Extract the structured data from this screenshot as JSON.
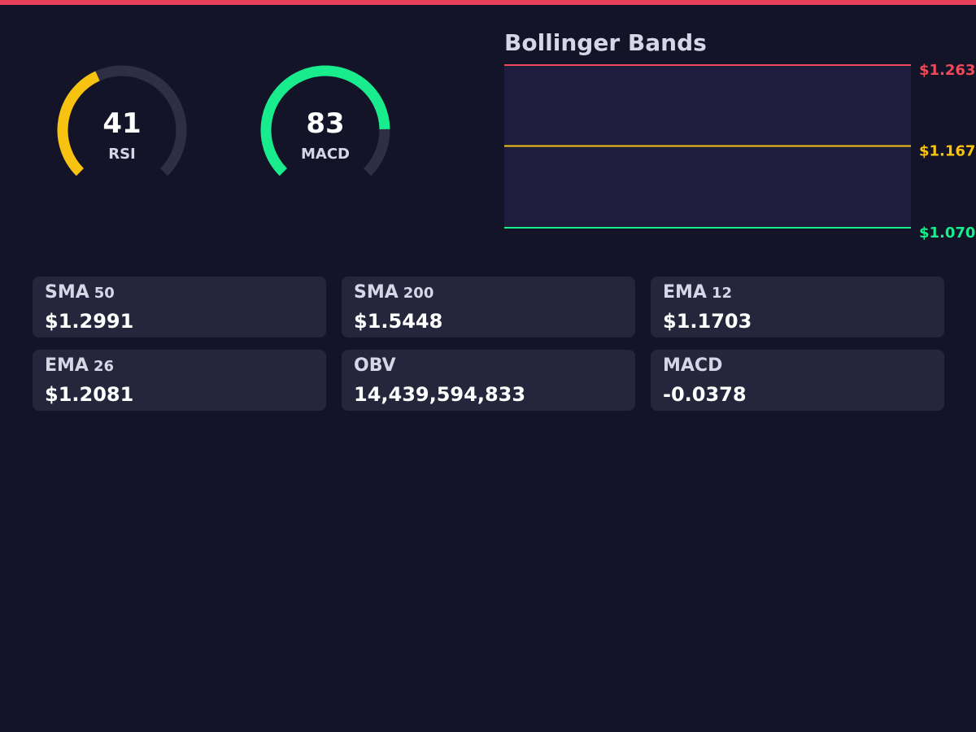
{
  "gauges": [
    {
      "label": "RSI",
      "value": 41,
      "range": [
        0,
        100
      ],
      "color": "#f7c210"
    },
    {
      "label": "MACD",
      "value": 83,
      "range": [
        0,
        100
      ],
      "color": "#19ec8c"
    }
  ],
  "bollinger": {
    "type": "bands",
    "title": "Bollinger Bands",
    "ylim": [
      1.07,
      1.263
    ],
    "bands": [
      {
        "value": 1.263,
        "value_label": "$1.263",
        "color": "#ef4a5a"
      },
      {
        "value": 1.167,
        "value_label": "$1.167",
        "color": "#f7c210"
      },
      {
        "value": 1.07,
        "value_label": "$1.070",
        "color": "#19ec8c"
      }
    ]
  },
  "cards": [
    {
      "label": "SMA",
      "period": "50",
      "value": "$1.2991"
    },
    {
      "label": "SMA",
      "period": "200",
      "value": "$1.5448"
    },
    {
      "label": "EMA",
      "period": "12",
      "value": "$1.1703"
    },
    {
      "label": "EMA",
      "period": "26",
      "value": "$1.2081"
    },
    {
      "label": "OBV",
      "value": "14,439,594,833"
    },
    {
      "label": "MACD",
      "value": "-0.0378"
    }
  ]
}
